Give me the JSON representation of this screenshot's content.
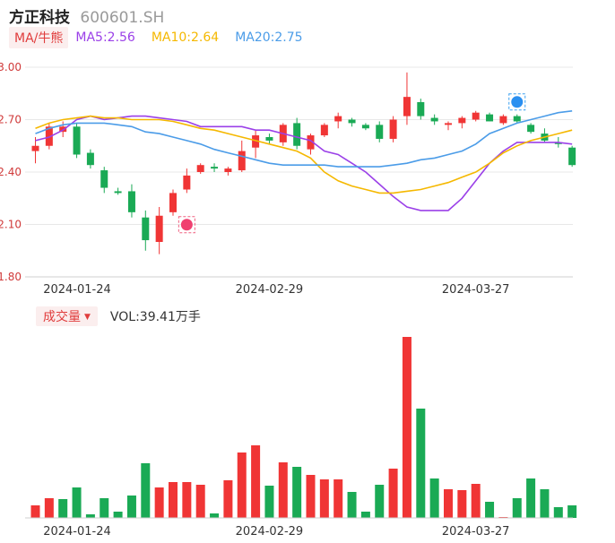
{
  "header": {
    "name": "方正科技",
    "code": "600601.SH"
  },
  "ma_legend": {
    "tag": "MA/牛熊",
    "items": [
      {
        "label": "MA5:2.56",
        "color": "#9b40e8"
      },
      {
        "label": "MA10:2.64",
        "color": "#f5b800"
      },
      {
        "label": "MA20:2.75",
        "color": "#4b9ce8"
      }
    ]
  },
  "volume_legend": {
    "tag": "成交量",
    "value": "VOL:39.41万手"
  },
  "colors": {
    "up": "#f03535",
    "down": "#1aaa55",
    "grid": "#e8e8e8"
  },
  "chart_data": [
    {
      "type": "candlestick",
      "ylim": [
        1.8,
        3.0
      ],
      "yticks": [
        "3.00",
        "2.70",
        "2.40",
        "2.10",
        "1.80"
      ],
      "xtick_labels": [
        {
          "label": "2024-01-24",
          "index": 0
        },
        {
          "label": "2024-02-29",
          "index": 17
        },
        {
          "label": "2024-03-27",
          "index": 32
        }
      ],
      "candles": [
        {
          "o": 2.52,
          "h": 2.6,
          "l": 2.45,
          "c": 2.55
        },
        {
          "o": 2.55,
          "h": 2.68,
          "l": 2.53,
          "c": 2.66
        },
        {
          "o": 2.63,
          "h": 2.69,
          "l": 2.6,
          "c": 2.66
        },
        {
          "o": 2.66,
          "h": 2.68,
          "l": 2.48,
          "c": 2.5
        },
        {
          "o": 2.51,
          "h": 2.53,
          "l": 2.42,
          "c": 2.44
        },
        {
          "o": 2.41,
          "h": 2.43,
          "l": 2.28,
          "c": 2.31
        },
        {
          "o": 2.29,
          "h": 2.31,
          "l": 2.27,
          "c": 2.28
        },
        {
          "o": 2.29,
          "h": 2.33,
          "l": 2.14,
          "c": 2.17
        },
        {
          "o": 2.14,
          "h": 2.18,
          "l": 1.95,
          "c": 2.01
        },
        {
          "o": 2.0,
          "h": 2.2,
          "l": 1.93,
          "c": 2.15
        },
        {
          "o": 2.17,
          "h": 2.3,
          "l": 2.15,
          "c": 2.28
        },
        {
          "o": 2.3,
          "h": 2.42,
          "l": 2.28,
          "c": 2.38
        },
        {
          "o": 2.4,
          "h": 2.45,
          "l": 2.39,
          "c": 2.44
        },
        {
          "o": 2.43,
          "h": 2.45,
          "l": 2.4,
          "c": 2.42
        },
        {
          "o": 2.4,
          "h": 2.43,
          "l": 2.38,
          "c": 2.42
        },
        {
          "o": 2.41,
          "h": 2.58,
          "l": 2.4,
          "c": 2.52
        },
        {
          "o": 2.54,
          "h": 2.64,
          "l": 2.48,
          "c": 2.61
        },
        {
          "o": 2.6,
          "h": 2.62,
          "l": 2.56,
          "c": 2.58
        },
        {
          "o": 2.57,
          "h": 2.68,
          "l": 2.55,
          "c": 2.67
        },
        {
          "o": 2.68,
          "h": 2.71,
          "l": 2.53,
          "c": 2.55
        },
        {
          "o": 2.53,
          "h": 2.62,
          "l": 2.5,
          "c": 2.61
        },
        {
          "o": 2.61,
          "h": 2.68,
          "l": 2.6,
          "c": 2.67
        },
        {
          "o": 2.69,
          "h": 2.74,
          "l": 2.65,
          "c": 2.72
        },
        {
          "o": 2.7,
          "h": 2.71,
          "l": 2.66,
          "c": 2.68
        },
        {
          "o": 2.67,
          "h": 2.68,
          "l": 2.64,
          "c": 2.65
        },
        {
          "o": 2.67,
          "h": 2.69,
          "l": 2.57,
          "c": 2.59
        },
        {
          "o": 2.59,
          "h": 2.72,
          "l": 2.57,
          "c": 2.7
        },
        {
          "o": 2.72,
          "h": 2.97,
          "l": 2.67,
          "c": 2.83
        },
        {
          "o": 2.8,
          "h": 2.82,
          "l": 2.7,
          "c": 2.72
        },
        {
          "o": 2.71,
          "h": 2.73,
          "l": 2.67,
          "c": 2.69
        },
        {
          "o": 2.67,
          "h": 2.69,
          "l": 2.64,
          "c": 2.68
        },
        {
          "o": 2.68,
          "h": 2.72,
          "l": 2.65,
          "c": 2.71
        },
        {
          "o": 2.7,
          "h": 2.75,
          "l": 2.69,
          "c": 2.74
        },
        {
          "o": 2.73,
          "h": 2.74,
          "l": 2.69,
          "c": 2.69
        },
        {
          "o": 2.68,
          "h": 2.73,
          "l": 2.67,
          "c": 2.72
        },
        {
          "o": 2.72,
          "h": 2.73,
          "l": 2.68,
          "c": 2.69
        },
        {
          "o": 2.67,
          "h": 2.68,
          "l": 2.62,
          "c": 2.63
        },
        {
          "o": 2.62,
          "h": 2.65,
          "l": 2.57,
          "c": 2.58
        },
        {
          "o": 2.57,
          "h": 2.6,
          "l": 2.54,
          "c": 2.56
        },
        {
          "o": 2.54,
          "h": 2.55,
          "l": 2.43,
          "c": 2.44
        }
      ],
      "ma_lines": {
        "MA5": [
          2.58,
          2.6,
          2.64,
          2.7,
          2.72,
          2.7,
          2.71,
          2.72,
          2.72,
          2.71,
          2.7,
          2.69,
          2.66,
          2.66,
          2.66,
          2.66,
          2.64,
          2.64,
          2.62,
          2.6,
          2.58,
          2.52,
          2.5,
          2.45,
          2.4,
          2.33,
          2.26,
          2.2,
          2.18,
          2.18,
          2.18,
          2.25,
          2.35,
          2.45,
          2.52,
          2.57,
          2.57,
          2.57,
          2.57,
          2.56
        ],
        "MA10": [
          2.65,
          2.68,
          2.7,
          2.71,
          2.72,
          2.71,
          2.71,
          2.7,
          2.7,
          2.7,
          2.69,
          2.67,
          2.65,
          2.64,
          2.62,
          2.6,
          2.58,
          2.56,
          2.54,
          2.52,
          2.48,
          2.4,
          2.35,
          2.32,
          2.3,
          2.28,
          2.28,
          2.29,
          2.3,
          2.32,
          2.34,
          2.37,
          2.4,
          2.45,
          2.51,
          2.55,
          2.58,
          2.6,
          2.62,
          2.64
        ],
        "MA20": [
          2.62,
          2.65,
          2.67,
          2.68,
          2.68,
          2.68,
          2.67,
          2.66,
          2.63,
          2.62,
          2.6,
          2.58,
          2.56,
          2.53,
          2.51,
          2.49,
          2.47,
          2.45,
          2.44,
          2.44,
          2.44,
          2.44,
          2.43,
          2.43,
          2.43,
          2.43,
          2.44,
          2.45,
          2.47,
          2.48,
          2.5,
          2.52,
          2.56,
          2.62,
          2.65,
          2.68,
          2.7,
          2.72,
          2.74,
          2.75
        ]
      }
    },
    {
      "type": "bar",
      "name": "volume",
      "values": [
        14,
        22,
        21,
        34,
        4,
        22,
        7,
        25,
        61,
        34,
        40,
        40,
        37,
        5,
        42,
        73,
        81,
        36,
        62,
        57,
        48,
        43,
        43,
        29,
        7,
        37,
        55,
        202,
        122,
        44,
        32,
        31,
        38,
        18,
        1,
        22,
        44,
        32,
        12,
        14
      ],
      "up": [
        true,
        true,
        false,
        false,
        false,
        false,
        false,
        false,
        false,
        true,
        true,
        true,
        true,
        false,
        true,
        true,
        true,
        false,
        true,
        false,
        true,
        true,
        true,
        false,
        false,
        false,
        true,
        true,
        false,
        false,
        true,
        true,
        true,
        false,
        true,
        false,
        false,
        false,
        false,
        false
      ]
    }
  ]
}
